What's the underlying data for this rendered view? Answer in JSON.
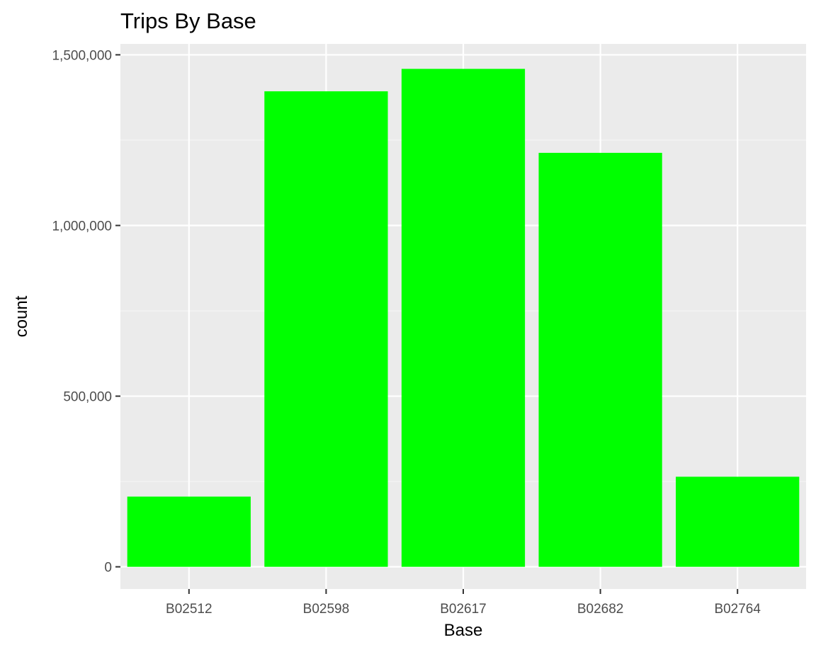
{
  "chart_data": {
    "type": "bar",
    "title": "Trips By Base",
    "xlabel": "Base",
    "ylabel": "count",
    "categories": [
      "B02512",
      "B02598",
      "B02617",
      "B02682",
      "B02764"
    ],
    "values": [
      205673,
      1393113,
      1458853,
      1212789,
      263899
    ],
    "ylim": [
      -65000,
      1532000
    ],
    "yticks": [
      0,
      500000,
      1000000,
      1500000
    ],
    "ytick_labels": [
      "0",
      "500,000",
      "1,000,000",
      "1,500,000"
    ],
    "grid": true,
    "legend": "none",
    "colors": {
      "bar": "#00ff00",
      "panel_background": "#ebebeb",
      "grid_major": "#ffffff",
      "grid_minor": "#f5f5f5",
      "tick_text": "#4d4d4d",
      "tick_mark": "#333333"
    }
  }
}
